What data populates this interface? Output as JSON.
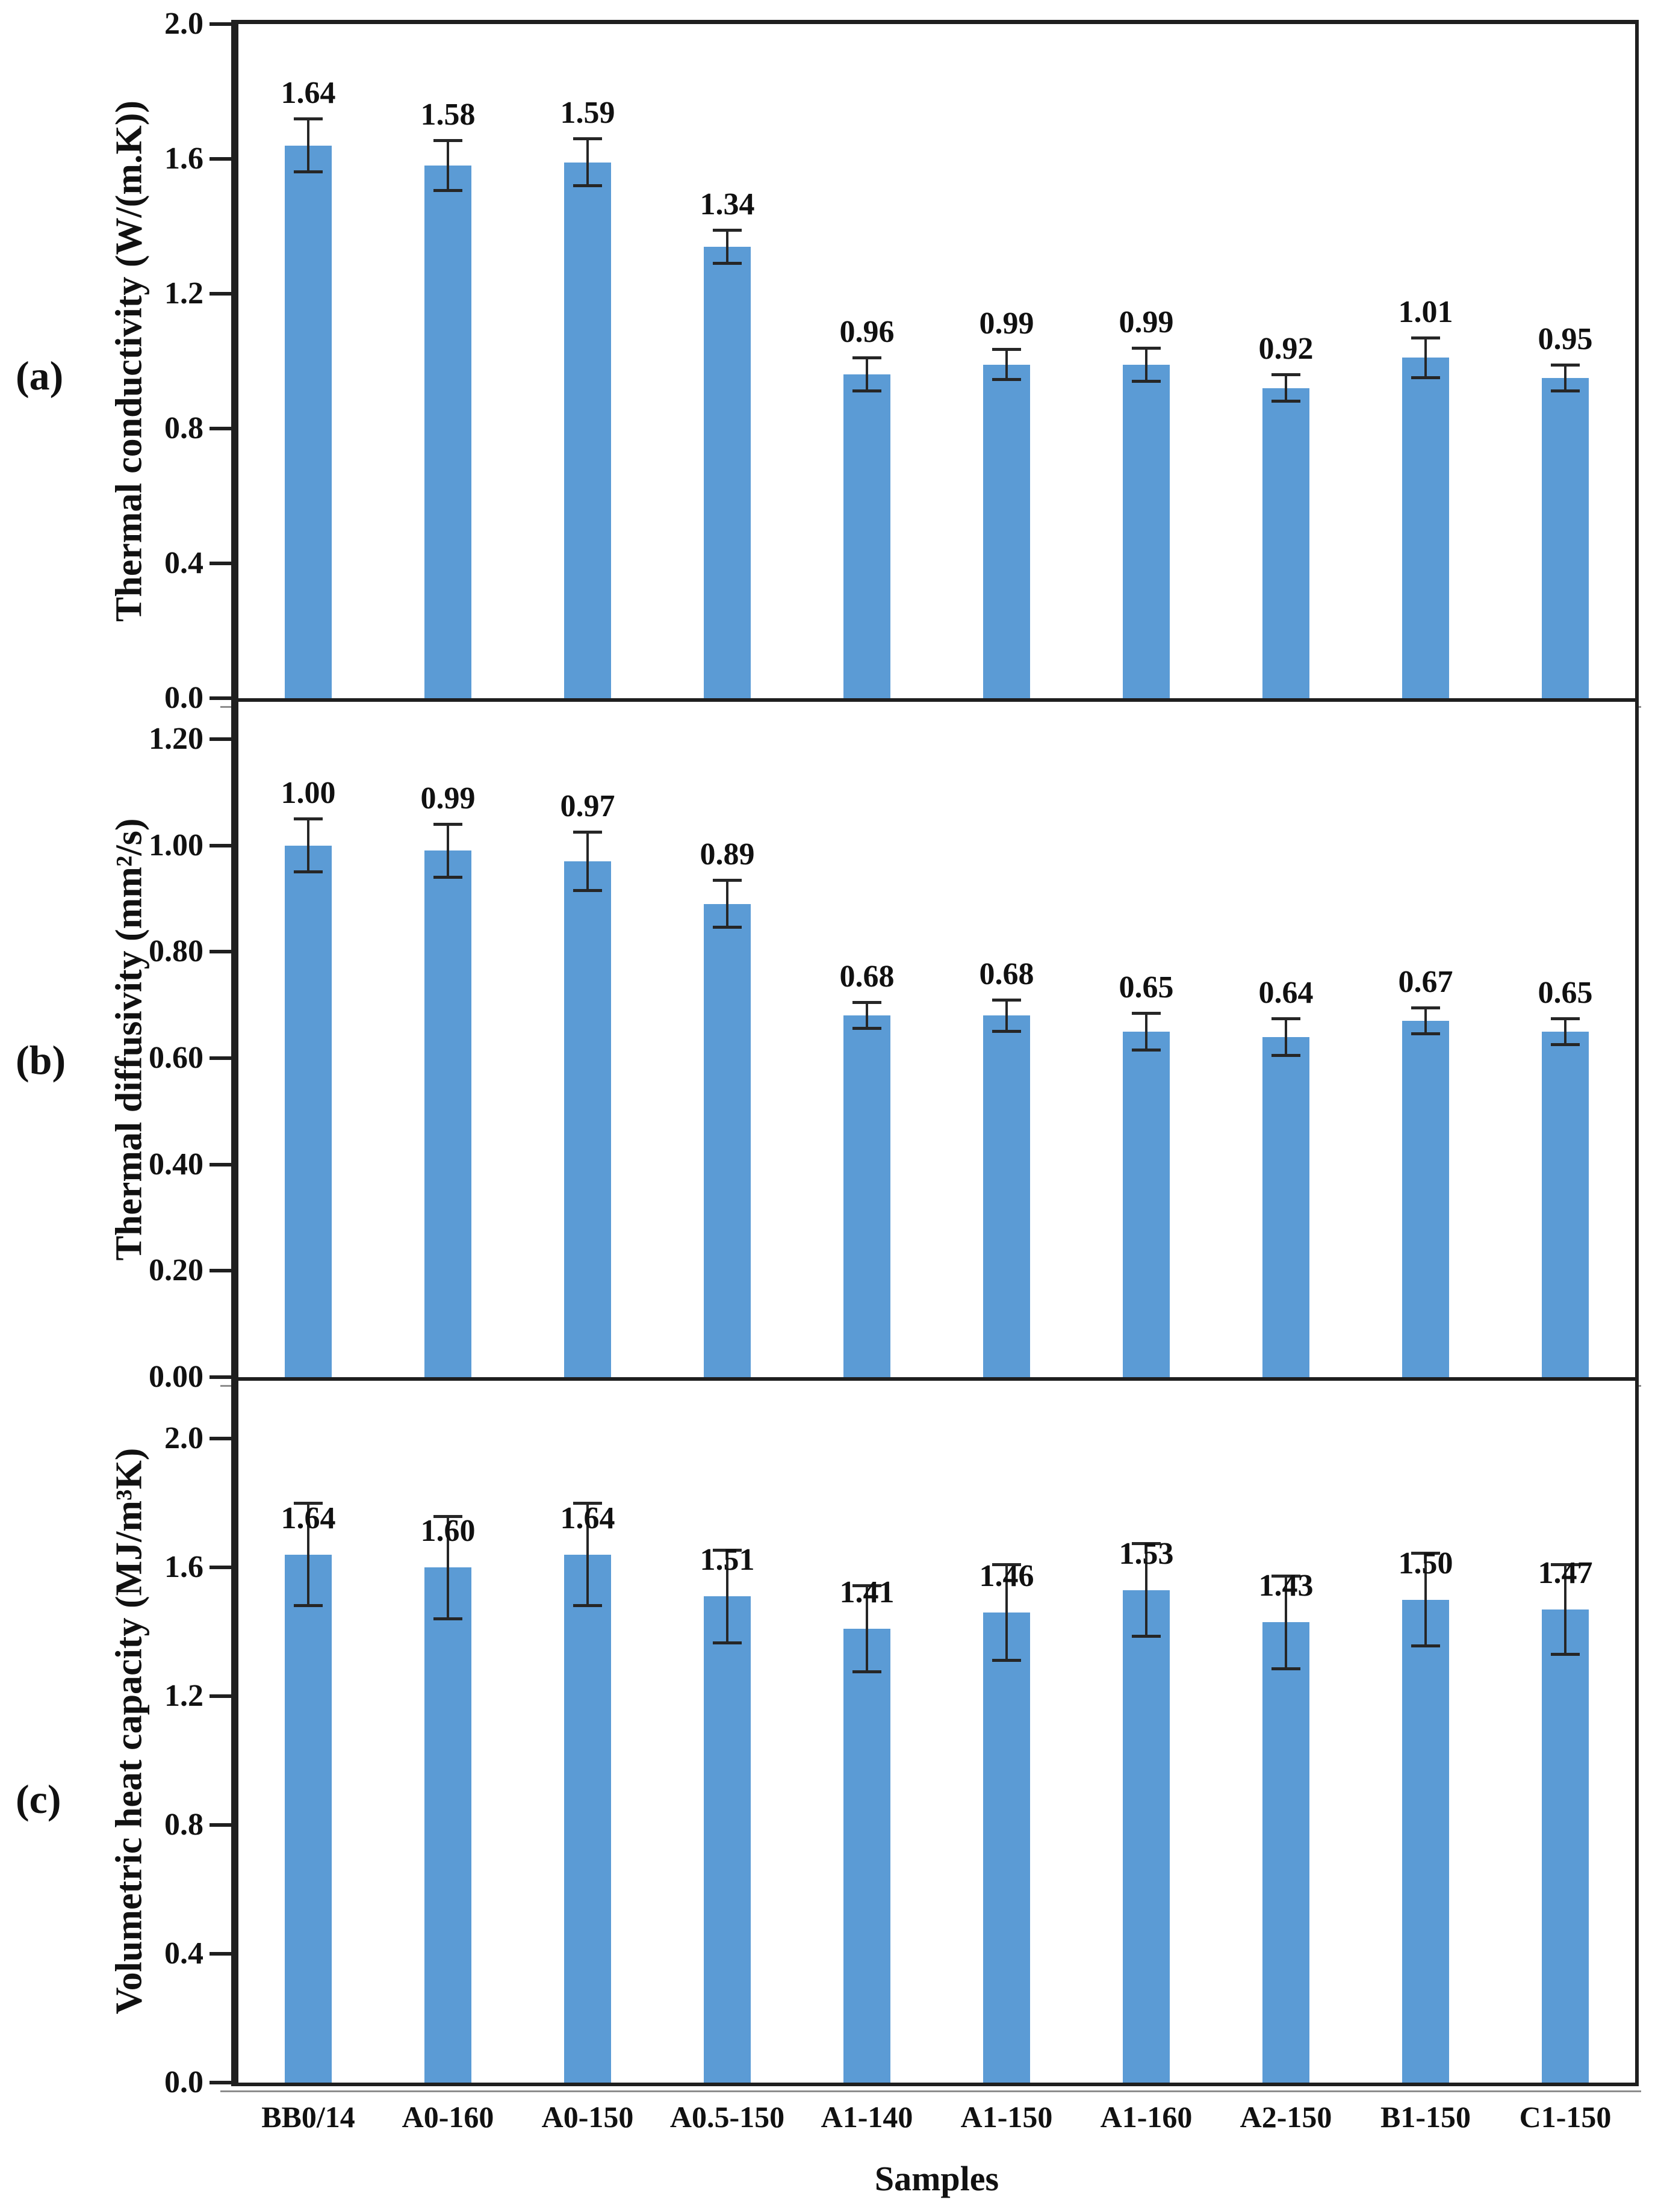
{
  "x_axis": {
    "title": "Samples",
    "categories": [
      "BB0/14",
      "A0-160",
      "A0-150",
      "A0.5-150",
      "A1-140",
      "A1-150",
      "A1-160",
      "A2-150",
      "B1-150",
      "C1-150"
    ]
  },
  "styles": {
    "bar_color": "#5B9BD5",
    "error_color": "#262626",
    "axis_color": "#1f1f1f"
  },
  "chart_data": [
    {
      "type": "bar",
      "panel_label": "(a)",
      "title": "",
      "xlabel": "Samples",
      "ylabel": "Thermal conductivity (W/(m.K))",
      "categories": [
        "BB0/14",
        "A0-160",
        "A0-150",
        "A0.5-150",
        "A1-140",
        "A1-150",
        "A1-160",
        "A2-150",
        "B1-150",
        "C1-150"
      ],
      "values": [
        1.64,
        1.58,
        1.59,
        1.34,
        0.96,
        0.99,
        0.99,
        0.92,
        1.01,
        0.95
      ],
      "value_labels": [
        "1.64",
        "1.58",
        "1.59",
        "1.34",
        "0.96",
        "0.99",
        "0.99",
        "0.92",
        "1.01",
        "0.95"
      ],
      "errors": [
        0.08,
        0.075,
        0.07,
        0.05,
        0.05,
        0.045,
        0.05,
        0.04,
        0.06,
        0.04
      ],
      "ylim": [
        0,
        2.0
      ],
      "axis_max": 2.0,
      "yticks": [
        {
          "value": 0.0,
          "label": "0.0"
        },
        {
          "value": 0.4,
          "label": "0.4"
        },
        {
          "value": 0.8,
          "label": "0.8"
        },
        {
          "value": 1.2,
          "label": "1.2"
        },
        {
          "value": 1.6,
          "label": "1.6"
        },
        {
          "value": 2.0,
          "label": "2.0"
        }
      ],
      "grid": false,
      "legend": null,
      "label_above_error": true
    },
    {
      "type": "bar",
      "panel_label": "(b)",
      "title": "",
      "xlabel": "Samples",
      "ylabel": "Thermal diffusivity (mm²/s)",
      "categories": [
        "BB0/14",
        "A0-160",
        "A0-150",
        "A0.5-150",
        "A1-140",
        "A1-150",
        "A1-160",
        "A2-150",
        "B1-150",
        "C1-150"
      ],
      "values": [
        1.0,
        0.99,
        0.97,
        0.89,
        0.68,
        0.68,
        0.65,
        0.64,
        0.67,
        0.65
      ],
      "value_labels": [
        "1.00",
        "0.99",
        "0.97",
        "0.89",
        "0.68",
        "0.68",
        "0.65",
        "0.64",
        "0.67",
        "0.65"
      ],
      "errors": [
        0.05,
        0.05,
        0.055,
        0.045,
        0.025,
        0.03,
        0.035,
        0.035,
        0.025,
        0.025
      ],
      "ylim": [
        0,
        1.2
      ],
      "axis_max": 1.27,
      "yticks": [
        {
          "value": 0.0,
          "label": "0.00"
        },
        {
          "value": 0.2,
          "label": "0.20"
        },
        {
          "value": 0.4,
          "label": "0.40"
        },
        {
          "value": 0.6,
          "label": "0.60"
        },
        {
          "value": 0.8,
          "label": "0.80"
        },
        {
          "value": 1.0,
          "label": "1.00"
        },
        {
          "value": 1.2,
          "label": "1.20"
        }
      ],
      "grid": false,
      "legend": null,
      "label_above_error": true
    },
    {
      "type": "bar",
      "panel_label": "(c)",
      "title": "",
      "xlabel": "Samples",
      "ylabel": "Volumetric heat capacity (MJ/m³K)",
      "categories": [
        "BB0/14",
        "A0-160",
        "A0-150",
        "A0.5-150",
        "A1-140",
        "A1-150",
        "A1-160",
        "A2-150",
        "B1-150",
        "C1-150"
      ],
      "values": [
        1.64,
        1.6,
        1.64,
        1.51,
        1.41,
        1.46,
        1.53,
        1.43,
        1.5,
        1.47
      ],
      "value_labels": [
        "1.64",
        "1.60",
        "1.64",
        "1.51",
        "1.41",
        "1.46",
        "1.53",
        "1.43",
        "1.50",
        "1.47"
      ],
      "errors": [
        0.16,
        0.16,
        0.16,
        0.145,
        0.135,
        0.15,
        0.145,
        0.145,
        0.145,
        0.14
      ],
      "ylim": [
        0,
        2.0
      ],
      "axis_max": 2.18,
      "yticks": [
        {
          "value": 0.0,
          "label": "0.0"
        },
        {
          "value": 0.4,
          "label": "0.4"
        },
        {
          "value": 0.8,
          "label": "0.8"
        },
        {
          "value": 1.2,
          "label": "1.2"
        },
        {
          "value": 1.6,
          "label": "1.6"
        },
        {
          "value": 2.0,
          "label": "2.0"
        }
      ],
      "grid": false,
      "legend": null,
      "label_above_error": false
    }
  ]
}
